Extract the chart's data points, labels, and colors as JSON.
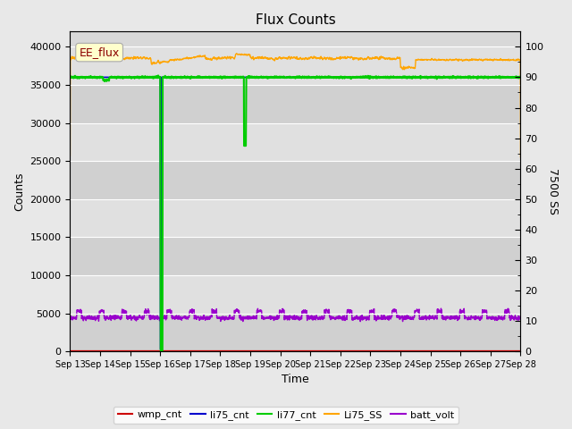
{
  "title": "Flux Counts",
  "xlabel": "Time",
  "ylabel_left": "Counts",
  "ylabel_right": "7500 SS",
  "annotation_text": "EE_flux",
  "x_tick_labels": [
    "Sep 13",
    "Sep 14",
    "Sep 15",
    "Sep 16",
    "Sep 17",
    "Sep 18",
    "Sep 19",
    "Sep 20",
    "Sep 21",
    "Sep 22",
    "Sep 23",
    "Sep 24",
    "Sep 25",
    "Sep 26",
    "Sep 27",
    "Sep 28"
  ],
  "y_left_ticks": [
    0,
    5000,
    10000,
    15000,
    20000,
    25000,
    30000,
    35000,
    40000
  ],
  "y_right_ticks": [
    0,
    10,
    20,
    30,
    40,
    50,
    60,
    70,
    80,
    90,
    100
  ],
  "ylim_left": [
    0,
    42000
  ],
  "ylim_right": [
    0,
    105
  ],
  "series": {
    "wmp_cnt": {
      "color": "#cc0000",
      "linewidth": 1.2,
      "zorder": 3
    },
    "li75_cnt": {
      "color": "#0000cc",
      "linewidth": 1.2,
      "zorder": 4
    },
    "li77_cnt": {
      "color": "#00cc00",
      "linewidth": 1.5,
      "zorder": 5
    },
    "Li75_SS": {
      "color": "#ffa500",
      "linewidth": 1.0,
      "zorder": 2
    },
    "batt_volt": {
      "color": "#9900cc",
      "linewidth": 1.0,
      "zorder": 2
    }
  },
  "grid_color": "#ffffff",
  "fig_bg_color": "#e8e8e8",
  "plot_bg_color": "#d8d8d8",
  "band_colors": [
    "#d0d0d0",
    "#e0e0e0"
  ],
  "legend_ncol": 5,
  "figsize": [
    6.4,
    4.8
  ],
  "dpi": 100
}
